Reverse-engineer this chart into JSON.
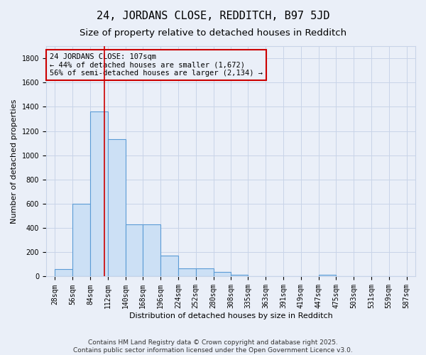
{
  "title": "24, JORDANS CLOSE, REDDITCH, B97 5JD",
  "subtitle": "Size of property relative to detached houses in Redditch",
  "xlabel": "Distribution of detached houses by size in Redditch",
  "ylabel": "Number of detached properties",
  "bar_edges": [
    28,
    56,
    84,
    112,
    140,
    168,
    196,
    224,
    252,
    280,
    308,
    335,
    363,
    391,
    419,
    447,
    475,
    503,
    531,
    559,
    587
  ],
  "bar_heights": [
    60,
    600,
    1360,
    1130,
    430,
    430,
    170,
    70,
    70,
    35,
    15,
    0,
    0,
    0,
    0,
    15,
    0,
    0,
    0,
    0
  ],
  "bar_color": "#cce0f5",
  "bar_edgecolor": "#5b9bd5",
  "bar_linewidth": 0.8,
  "grid_color": "#c8d4e8",
  "background_color": "#eaeff8",
  "red_line_x": 107,
  "red_line_color": "#cc0000",
  "annotation_text": "24 JORDANS CLOSE: 107sqm\n← 44% of detached houses are smaller (1,672)\n56% of semi-detached houses are larger (2,134) →",
  "annotation_box_color": "#cc0000",
  "ylim": [
    0,
    1900
  ],
  "yticks": [
    0,
    200,
    400,
    600,
    800,
    1000,
    1200,
    1400,
    1600,
    1800
  ],
  "footer_line1": "Contains HM Land Registry data © Crown copyright and database right 2025.",
  "footer_line2": "Contains public sector information licensed under the Open Government Licence v3.0.",
  "title_fontsize": 11,
  "subtitle_fontsize": 9.5,
  "axis_label_fontsize": 8,
  "tick_fontsize": 7,
  "annotation_fontsize": 7.5,
  "footer_fontsize": 6.5
}
